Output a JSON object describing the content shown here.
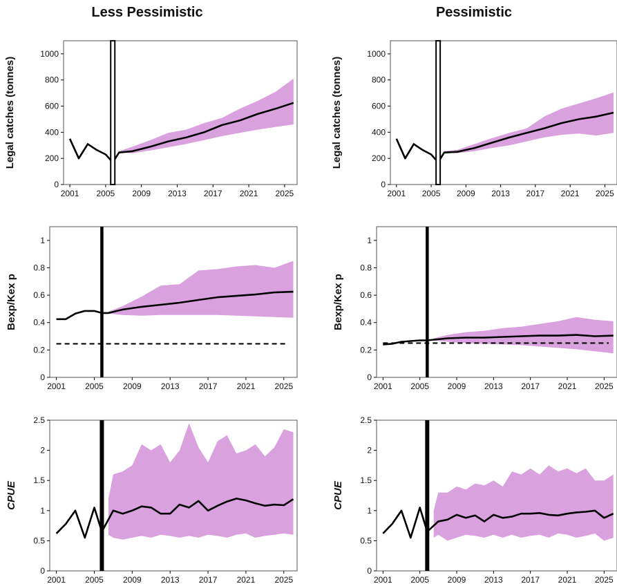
{
  "figure": {
    "left_title": "Less Pessimistic",
    "right_title": "Pessimistic"
  },
  "colors": {
    "band": "#d9a2de",
    "line": "#000000",
    "frame": "#555555"
  },
  "chart_data": [
    {
      "type": "line",
      "id": "catch-less",
      "column": "Less Pessimistic",
      "ylabel": "Legal catches (tonnes)",
      "italic_ylabel": false,
      "xlim": [
        2000.3,
        2026.4
      ],
      "ylim": [
        0,
        1100
      ],
      "xticks": [
        2001,
        2005,
        2009,
        2013,
        2017,
        2021,
        2025
      ],
      "yticks": [
        0,
        200,
        400,
        600,
        800,
        1000
      ],
      "ytick_labels": [
        "0",
        "200",
        "400",
        "600",
        "800",
        "1000"
      ],
      "separator": {
        "x": 2005.8,
        "style": "double"
      },
      "reference_line": null,
      "median": {
        "x": [
          2001,
          2002,
          2003,
          2004,
          2005,
          2005.8,
          2006.5,
          2008,
          2010,
          2012,
          2014,
          2016,
          2018,
          2020,
          2022,
          2024,
          2026
        ],
        "y": [
          350,
          200,
          310,
          265,
          230,
          170,
          245,
          255,
          290,
          330,
          360,
          400,
          455,
          490,
          540,
          580,
          625
        ]
      },
      "band": {
        "x": [
          2006.5,
          2008,
          2010,
          2012,
          2014,
          2016,
          2018,
          2020,
          2022,
          2024,
          2026
        ],
        "lower": [
          245,
          240,
          260,
          285,
          310,
          340,
          370,
          395,
          420,
          440,
          460
        ],
        "upper": [
          255,
          290,
          340,
          395,
          420,
          470,
          510,
          580,
          640,
          710,
          810
        ]
      }
    },
    {
      "type": "line",
      "id": "catch-pess",
      "column": "Pessimistic",
      "ylabel": "Legal catches (tonnes)",
      "italic_ylabel": false,
      "xlim": [
        2000.3,
        2026.4
      ],
      "ylim": [
        0,
        1100
      ],
      "xticks": [
        2001,
        2005,
        2009,
        2013,
        2017,
        2021,
        2025
      ],
      "yticks": [
        0,
        200,
        400,
        600,
        800,
        1000
      ],
      "ytick_labels": [
        "0",
        "200",
        "400",
        "600",
        "800",
        "1000"
      ],
      "separator": {
        "x": 2005.8,
        "style": "double"
      },
      "reference_line": null,
      "median": {
        "x": [
          2001,
          2002,
          2003,
          2004,
          2005,
          2005.8,
          2006.5,
          2008,
          2010,
          2012,
          2014,
          2016,
          2018,
          2020,
          2022,
          2024,
          2026
        ],
        "y": [
          350,
          200,
          310,
          265,
          230,
          170,
          245,
          250,
          280,
          320,
          360,
          395,
          430,
          470,
          500,
          520,
          550
        ]
      },
      "band": {
        "x": [
          2006.5,
          2008,
          2010,
          2012,
          2014,
          2016,
          2018,
          2020,
          2022,
          2024,
          2026
        ],
        "lower": [
          245,
          240,
          255,
          280,
          300,
          330,
          360,
          380,
          390,
          375,
          395
        ],
        "upper": [
          255,
          265,
          310,
          355,
          395,
          430,
          520,
          580,
          620,
          660,
          705
        ]
      }
    },
    {
      "type": "line",
      "id": "bexp-less",
      "column": "Less Pessimistic",
      "ylabel": "Bexp/Kex p",
      "italic_ylabel": false,
      "xlim": [
        2000.3,
        2026.4
      ],
      "ylim": [
        0,
        1.1
      ],
      "xticks": [
        2001,
        2005,
        2009,
        2013,
        2017,
        2021,
        2025
      ],
      "yticks": [
        0,
        0.2,
        0.4,
        0.6,
        0.8,
        1
      ],
      "ytick_labels": [
        "0",
        "0.2",
        "0.4",
        "0.6",
        "0.8",
        "1"
      ],
      "separator": {
        "x": 2005.8,
        "style": "single"
      },
      "reference_line": {
        "y": 0.245,
        "x": [
          2001,
          2025.5
        ],
        "style": "dashed"
      },
      "median": {
        "x": [
          2001,
          2002,
          2003,
          2004,
          2005,
          2005.8,
          2006.5,
          2008,
          2010,
          2012,
          2014,
          2016,
          2018,
          2020,
          2022,
          2024,
          2026
        ],
        "y": [
          0.425,
          0.425,
          0.465,
          0.485,
          0.485,
          0.47,
          0.47,
          0.495,
          0.515,
          0.53,
          0.545,
          0.565,
          0.585,
          0.595,
          0.605,
          0.62,
          0.625
        ]
      },
      "band": {
        "x": [
          2006.5,
          2008,
          2010,
          2012,
          2014,
          2016,
          2018,
          2020,
          2022,
          2024,
          2026
        ],
        "lower": [
          0.465,
          0.455,
          0.45,
          0.455,
          0.455,
          0.455,
          0.455,
          0.45,
          0.445,
          0.44,
          0.435
        ],
        "upper": [
          0.48,
          0.52,
          0.59,
          0.67,
          0.68,
          0.78,
          0.79,
          0.81,
          0.82,
          0.8,
          0.85
        ]
      }
    },
    {
      "type": "line",
      "id": "bexp-pess",
      "column": "Pessimistic",
      "ylabel": "Bexp/Kex p",
      "italic_ylabel": false,
      "xlim": [
        2000.3,
        2026.4
      ],
      "ylim": [
        0,
        1.1
      ],
      "xticks": [
        2001,
        2005,
        2009,
        2013,
        2017,
        2021,
        2025
      ],
      "yticks": [
        0,
        0.2,
        0.4,
        0.6,
        0.8,
        1
      ],
      "ytick_labels": [
        "0",
        "0.2",
        "0.4",
        "0.6",
        "0.8",
        "1"
      ],
      "separator": {
        "x": 2005.8,
        "style": "single"
      },
      "reference_line": {
        "y": 0.25,
        "x": [
          2001,
          2025.5
        ],
        "style": "dashed"
      },
      "median": {
        "x": [
          2001,
          2002,
          2003,
          2004,
          2005,
          2005.8,
          2006.5,
          2008,
          2010,
          2012,
          2014,
          2016,
          2018,
          2020,
          2022,
          2024,
          2026
        ],
        "y": [
          0.24,
          0.245,
          0.26,
          0.265,
          0.27,
          0.27,
          0.275,
          0.285,
          0.29,
          0.29,
          0.295,
          0.3,
          0.305,
          0.305,
          0.31,
          0.3,
          0.305
        ]
      },
      "band": {
        "x": [
          2006.5,
          2008,
          2010,
          2012,
          2014,
          2016,
          2018,
          2020,
          2022,
          2024,
          2026
        ],
        "lower": [
          0.27,
          0.26,
          0.25,
          0.245,
          0.24,
          0.235,
          0.225,
          0.215,
          0.205,
          0.19,
          0.175
        ],
        "upper": [
          0.285,
          0.31,
          0.33,
          0.34,
          0.36,
          0.37,
          0.39,
          0.41,
          0.44,
          0.42,
          0.41
        ]
      }
    },
    {
      "type": "line",
      "id": "cpue-less",
      "column": "Less Pessimistic",
      "ylabel": "CPUE",
      "italic_ylabel": true,
      "xlim": [
        2000.3,
        2026.4
      ],
      "ylim": [
        0,
        2.5
      ],
      "xticks": [
        2001,
        2005,
        2009,
        2013,
        2017,
        2021,
        2025
      ],
      "yticks": [
        0,
        0.5,
        1,
        1.5,
        2,
        2.5
      ],
      "ytick_labels": [
        "0",
        "0.5",
        "1",
        "1.5",
        "2",
        "2.5"
      ],
      "separator": {
        "x": 2005.8,
        "style": "thick"
      },
      "reference_line": null,
      "median": {
        "x": [
          2001,
          2002,
          2003,
          2004,
          2005,
          2005.8,
          2007,
          2008,
          2009,
          2010,
          2011,
          2012,
          2013,
          2014,
          2015,
          2016,
          2017,
          2018,
          2019,
          2020,
          2021,
          2022,
          2023,
          2024,
          2025,
          2026
        ],
        "y": [
          0.62,
          0.78,
          1.0,
          0.55,
          1.05,
          0.65,
          1.0,
          0.95,
          1.0,
          1.07,
          1.05,
          0.95,
          0.95,
          1.1,
          1.05,
          1.16,
          1.0,
          1.08,
          1.15,
          1.2,
          1.17,
          1.12,
          1.08,
          1.1,
          1.09,
          1.19
        ]
      },
      "band": {
        "x": [
          2006.5,
          2007,
          2008,
          2009,
          2010,
          2011,
          2012,
          2013,
          2014,
          2015,
          2016,
          2017,
          2018,
          2019,
          2020,
          2021,
          2022,
          2023,
          2024,
          2025,
          2026
        ],
        "lower": [
          0.6,
          0.55,
          0.52,
          0.55,
          0.58,
          0.55,
          0.6,
          0.58,
          0.55,
          0.58,
          0.55,
          0.6,
          0.58,
          0.55,
          0.6,
          0.62,
          0.55,
          0.58,
          0.6,
          0.62,
          0.6
        ],
        "upper": [
          1.2,
          1.6,
          1.65,
          1.75,
          2.1,
          2.0,
          2.1,
          1.8,
          2.0,
          2.45,
          2.05,
          1.8,
          2.15,
          2.25,
          1.95,
          2.0,
          2.1,
          1.9,
          2.05,
          2.35,
          2.3
        ]
      }
    },
    {
      "type": "line",
      "id": "cpue-pess",
      "column": "Pessimistic",
      "ylabel": "CPUE",
      "italic_ylabel": true,
      "xlim": [
        2000.3,
        2026.4
      ],
      "ylim": [
        0,
        2.5
      ],
      "xticks": [
        2001,
        2005,
        2009,
        2013,
        2017,
        2021,
        2025
      ],
      "yticks": [
        0,
        0.5,
        1,
        1.5,
        2,
        2.5
      ],
      "ytick_labels": [
        "0",
        "0.5",
        "1",
        "1.5",
        "2",
        "2.5"
      ],
      "separator": {
        "x": 2005.8,
        "style": "thick"
      },
      "reference_line": null,
      "median": {
        "x": [
          2001,
          2002,
          2003,
          2004,
          2005,
          2005.8,
          2007,
          2008,
          2009,
          2010,
          2011,
          2012,
          2013,
          2014,
          2015,
          2016,
          2017,
          2018,
          2019,
          2020,
          2021,
          2022,
          2023,
          2024,
          2025,
          2026
        ],
        "y": [
          0.62,
          0.78,
          1.0,
          0.55,
          1.05,
          0.65,
          0.82,
          0.85,
          0.93,
          0.88,
          0.92,
          0.82,
          0.93,
          0.88,
          0.9,
          0.95,
          0.95,
          0.96,
          0.93,
          0.92,
          0.95,
          0.97,
          0.98,
          1.0,
          0.88,
          0.95
        ]
      },
      "band": {
        "x": [
          2006.5,
          2007,
          2008,
          2009,
          2010,
          2011,
          2012,
          2013,
          2014,
          2015,
          2016,
          2017,
          2018,
          2019,
          2020,
          2021,
          2022,
          2023,
          2024,
          2025,
          2026
        ],
        "lower": [
          0.55,
          0.6,
          0.5,
          0.55,
          0.6,
          0.58,
          0.55,
          0.6,
          0.55,
          0.6,
          0.55,
          0.58,
          0.6,
          0.55,
          0.62,
          0.6,
          0.55,
          0.58,
          0.62,
          0.5,
          0.55
        ],
        "upper": [
          1.0,
          1.3,
          1.3,
          1.4,
          1.35,
          1.45,
          1.42,
          1.5,
          1.4,
          1.65,
          1.6,
          1.7,
          1.6,
          1.75,
          1.65,
          1.7,
          1.62,
          1.7,
          1.5,
          1.5,
          1.6
        ]
      }
    }
  ]
}
